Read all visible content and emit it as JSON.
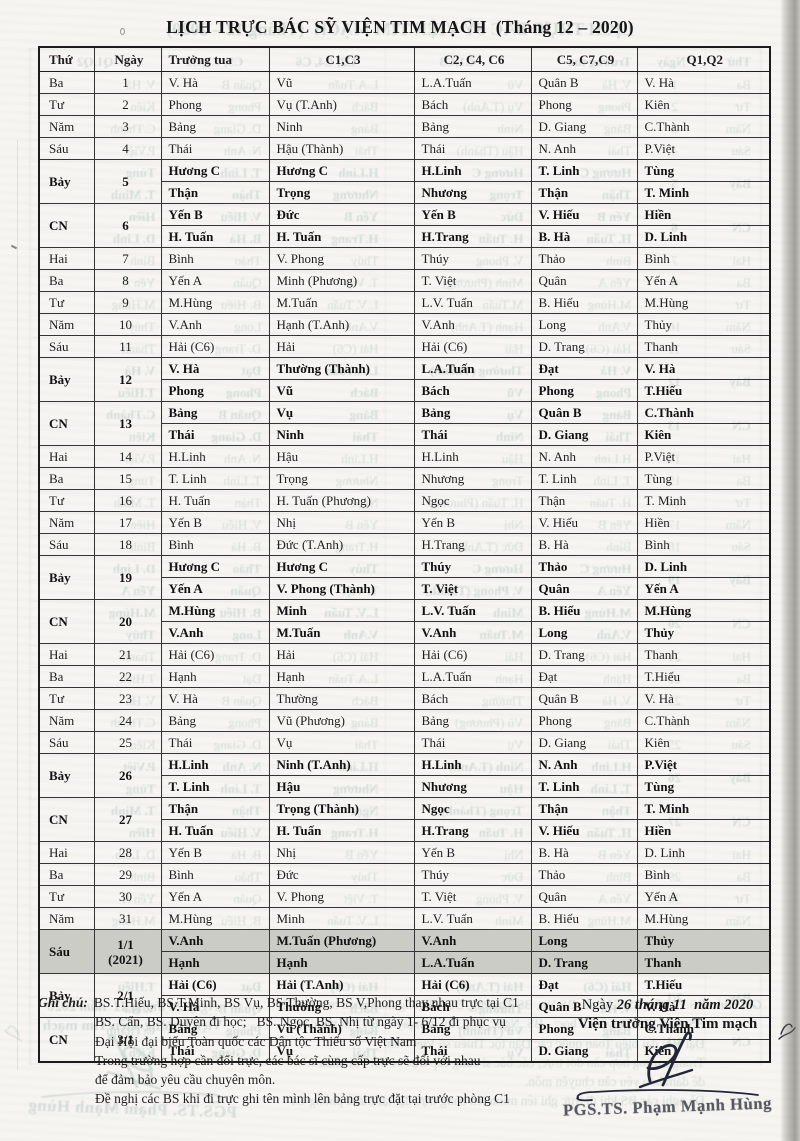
{
  "page": {
    "title": "LỊCH TRỰC BÁC SỸ VIỆN TIM MẠCH  (Tháng 12 – 2020)"
  },
  "colors": {
    "ink": "#1e1e1e",
    "shaded_row": "#ccccc7",
    "bleed_text": "#1f584e",
    "signature_ink": "#232638"
  },
  "table": {
    "headers": [
      "Thứ",
      "Ngày",
      "Trưởng tua",
      "C1,C3",
      "C2, C4, C6",
      "C5, C7,C9",
      "Q1,Q2"
    ],
    "rows": [
      {
        "thu": "Ba",
        "ngay": "1",
        "bold": false,
        "shaded": false,
        "lines": [
          [
            "V. Hà",
            "Vũ",
            "L.A.Tuấn",
            "Quân B",
            "V. Hà"
          ]
        ]
      },
      {
        "thu": "Tư",
        "ngay": "2",
        "bold": false,
        "shaded": false,
        "lines": [
          [
            "Phong",
            "Vụ (T.Anh)",
            "Bách",
            "Phong",
            "Kiên"
          ]
        ]
      },
      {
        "thu": "Năm",
        "ngay": "3",
        "bold": false,
        "shaded": false,
        "lines": [
          [
            "Bảng",
            "Ninh",
            "Bảng",
            "D. Giang",
            "C.Thành"
          ]
        ]
      },
      {
        "thu": "Sáu",
        "ngay": "4",
        "bold": false,
        "shaded": false,
        "lines": [
          [
            "Thái",
            "Hậu (Thành)",
            "Thái",
            "N. Anh",
            "P.Việt"
          ]
        ]
      },
      {
        "thu": "Bảy",
        "ngay": "5",
        "bold": true,
        "shaded": false,
        "lines": [
          [
            "Hương C",
            "Hương C",
            "H.Linh",
            "T. Linh",
            "Tùng"
          ],
          [
            "Thận",
            "Trọng",
            "Nhương",
            "Thận",
            "T. Minh"
          ]
        ]
      },
      {
        "thu": "CN",
        "ngay": "6",
        "bold": true,
        "shaded": false,
        "lines": [
          [
            "Yến B",
            "Đức",
            "Yến B",
            "V. Hiếu",
            "Hiền"
          ],
          [
            "H. Tuấn",
            "H. Tuấn",
            "H.Trang",
            "B. Hà",
            "D. Linh"
          ]
        ]
      },
      {
        "thu": "Hai",
        "ngay": "7",
        "bold": false,
        "shaded": false,
        "lines": [
          [
            "Bình",
            "V. Phong",
            "Thúy",
            "Thảo",
            "Bình"
          ]
        ]
      },
      {
        "thu": "Ba",
        "ngay": "8",
        "bold": false,
        "shaded": false,
        "lines": [
          [
            "Yến A",
            "Minh (Phương)",
            "T. Việt",
            "Quân",
            "Yến A"
          ]
        ]
      },
      {
        "thu": "Tư",
        "ngay": "9",
        "bold": false,
        "shaded": false,
        "lines": [
          [
            "M.Hùng",
            "M.Tuấn",
            "L.V. Tuấn",
            "B. Hiếu",
            "M.Hùng"
          ]
        ]
      },
      {
        "thu": "Năm",
        "ngay": "10",
        "bold": false,
        "shaded": false,
        "lines": [
          [
            "V.Anh",
            "Hạnh (T.Anh)",
            "V.Anh",
            "Long",
            "Thủy"
          ]
        ]
      },
      {
        "thu": "Sáu",
        "ngay": "11",
        "bold": false,
        "shaded": false,
        "lines": [
          [
            "Hải (C6)",
            "Hải",
            "Hải (C6)",
            "D. Trang",
            "Thanh"
          ]
        ]
      },
      {
        "thu": "Bảy",
        "ngay": "12",
        "bold": true,
        "shaded": false,
        "lines": [
          [
            "V. Hà",
            "Thường (Thành)",
            "L.A.Tuấn",
            "Đạt",
            "V. Hà"
          ],
          [
            "Phong",
            "Vũ",
            "Bách",
            "Phong",
            "T.Hiếu"
          ]
        ]
      },
      {
        "thu": "CN",
        "ngay": "13",
        "bold": true,
        "shaded": false,
        "lines": [
          [
            "Bảng",
            "Vụ",
            "Bảng",
            "Quân B",
            "C.Thành"
          ],
          [
            "Thái",
            "Ninh",
            "Thái",
            "D. Giang",
            "Kiên"
          ]
        ]
      },
      {
        "thu": "Hai",
        "ngay": "14",
        "bold": false,
        "shaded": false,
        "lines": [
          [
            "H.Linh",
            "Hậu",
            "H.Linh",
            "N. Anh",
            "P.Việt"
          ]
        ]
      },
      {
        "thu": "Ba",
        "ngay": "15",
        "bold": false,
        "shaded": false,
        "lines": [
          [
            "T. Linh",
            "Trọng",
            "Nhương",
            "T. Linh",
            "Tùng"
          ]
        ]
      },
      {
        "thu": "Tư",
        "ngay": "16",
        "bold": false,
        "shaded": false,
        "lines": [
          [
            "H. Tuấn",
            "H. Tuấn (Phương)",
            "Ngọc",
            "Thận",
            "T. Minh"
          ]
        ]
      },
      {
        "thu": "Năm",
        "ngay": "17",
        "bold": false,
        "shaded": false,
        "lines": [
          [
            "Yến B",
            "Nhị",
            "Yến B",
            "V. Hiếu",
            "Hiền"
          ]
        ]
      },
      {
        "thu": "Sáu",
        "ngay": "18",
        "bold": false,
        "shaded": false,
        "lines": [
          [
            "Bình",
            "Đức (T.Anh)",
            "H.Trang",
            "B. Hà",
            "Bình"
          ]
        ]
      },
      {
        "thu": "Bảy",
        "ngay": "19",
        "bold": true,
        "shaded": false,
        "lines": [
          [
            "Hương C",
            "Hương C",
            "Thúy",
            "Thảo",
            "D. Linh"
          ],
          [
            "Yến A",
            "V. Phong (Thành)",
            "T. Việt",
            "Quân",
            "Yến A"
          ]
        ]
      },
      {
        "thu": "CN",
        "ngay": "20",
        "bold": true,
        "shaded": false,
        "lines": [
          [
            "M.Hùng",
            "Minh",
            "L.V. Tuấn",
            "B. Hiếu",
            "M.Hùng"
          ],
          [
            "V.Anh",
            "M.Tuấn",
            "V.Anh",
            "Long",
            "Thủy"
          ]
        ]
      },
      {
        "thu": "Hai",
        "ngay": "21",
        "bold": false,
        "shaded": false,
        "lines": [
          [
            "Hải (C6)",
            "Hải",
            "Hải (C6)",
            "D. Trang",
            "Thanh"
          ]
        ]
      },
      {
        "thu": "Ba",
        "ngay": "22",
        "bold": false,
        "shaded": false,
        "lines": [
          [
            "Hạnh",
            "Hạnh",
            "L.A.Tuấn",
            "Đạt",
            "T.Hiếu"
          ]
        ]
      },
      {
        "thu": "Tư",
        "ngay": "23",
        "bold": false,
        "shaded": false,
        "lines": [
          [
            "V. Hà",
            "Thường",
            "Bách",
            "Quân B",
            "V. Hà"
          ]
        ]
      },
      {
        "thu": "Năm",
        "ngay": "24",
        "bold": false,
        "shaded": false,
        "lines": [
          [
            "Bảng",
            "Vũ (Phương)",
            "Bảng",
            "Phong",
            "C.Thành"
          ]
        ]
      },
      {
        "thu": "Sáu",
        "ngay": "25",
        "bold": false,
        "shaded": false,
        "lines": [
          [
            "Thái",
            "Vụ",
            "Thái",
            "D. Giang",
            "Kiên"
          ]
        ]
      },
      {
        "thu": "Bảy",
        "ngay": "26",
        "bold": true,
        "shaded": false,
        "lines": [
          [
            "H.Linh",
            "Ninh (T.Anh)",
            "H.Linh",
            "N. Anh",
            "P.Việt"
          ],
          [
            "T. Linh",
            "Hậu",
            "Nhương",
            "T. Linh",
            "Tùng"
          ]
        ]
      },
      {
        "thu": "CN",
        "ngay": "27",
        "bold": true,
        "shaded": false,
        "lines": [
          [
            "Thận",
            "Trọng (Thành)",
            "Ngọc",
            "Thận",
            "T. Minh"
          ],
          [
            "H. Tuấn",
            "H. Tuấn",
            "H.Trang",
            "V. Hiếu",
            "Hiền"
          ]
        ]
      },
      {
        "thu": "Hai",
        "ngay": "28",
        "bold": false,
        "shaded": false,
        "lines": [
          [
            "Yến B",
            "Nhị",
            "Yến B",
            "B. Hà",
            "D. Linh"
          ]
        ]
      },
      {
        "thu": "Ba",
        "ngay": "29",
        "bold": false,
        "shaded": false,
        "lines": [
          [
            "Bình",
            "Đức",
            "Thúy",
            "Thảo",
            "Bình"
          ]
        ]
      },
      {
        "thu": "Tư",
        "ngay": "30",
        "bold": false,
        "shaded": false,
        "lines": [
          [
            "Yến A",
            "V. Phong",
            "T. Việt",
            "Quân",
            "Yến A"
          ]
        ]
      },
      {
        "thu": "Năm",
        "ngay": "31",
        "bold": false,
        "shaded": false,
        "lines": [
          [
            "M.Hùng",
            "Minh",
            "L.V. Tuấn",
            "B. Hiếu",
            "M.Hùng"
          ]
        ]
      },
      {
        "thu": "Sáu",
        "ngay": "1/1",
        "ngay2": "(2021)",
        "bold": true,
        "shaded": true,
        "lines": [
          [
            "V.Anh",
            "M.Tuấn (Phương)",
            "V.Anh",
            "Long",
            "Thủy"
          ],
          [
            "Hạnh",
            "Hạnh",
            "L.A.Tuấn",
            "D. Trang",
            "Thanh"
          ]
        ]
      },
      {
        "thu": "Bảy",
        "ngay": "2/1",
        "bold": true,
        "shaded": false,
        "lines": [
          [
            "Hải (C6)",
            "Hải (T.Anh)",
            "Hải (C6)",
            "Đạt",
            "T.Hiếu"
          ],
          [
            "V. Hà",
            "Thường",
            "Bách",
            "Quân B",
            "V. Hà"
          ]
        ]
      },
      {
        "thu": "CN",
        "ngay": "3/1",
        "bold": true,
        "shaded": false,
        "lines": [
          [
            "Bảng",
            "Vũ (Thành)",
            "Bảng",
            "Phong",
            "C.Thành"
          ],
          [
            "Thái",
            "Vụ",
            "Thái",
            "D. Giang",
            "Kiên"
          ]
        ]
      }
    ]
  },
  "notes": {
    "label": "Ghi chú:",
    "lines": [
      "BS.T.Hiếu, BS.T.Minh, BS Vụ, BS Thường, BS V,Phong thay nhau trực tại C1",
      "BS. Cẩn, BS. Duyên đi học;   BS. Ngọc, BS. Nhị từ ngày 1- 6/12 đi phục vụ",
      "Đại Hội đại biểu Toàn quốc các Dân tộc Thiểu số Việt Nam",
      "Trong trường hợp cần đổi trực, các bác sĩ cùng cấp trực sẽ đổi với nhau",
      "để đảm bảo yêu cầu chuyên môn.",
      "Đề nghị các BS khi đi trực ghi tên mình lên bảng trực đặt tại trước phòng C1"
    ]
  },
  "signoff": {
    "date_prefix": "Ngày ",
    "date": "26 tháng 11  năm 2020",
    "position": "Viện trưởng Viện Tim mạch",
    "name": "PGS.TS. Phạm Mạnh Hùng",
    "signature_icon": "handwritten-signature"
  }
}
